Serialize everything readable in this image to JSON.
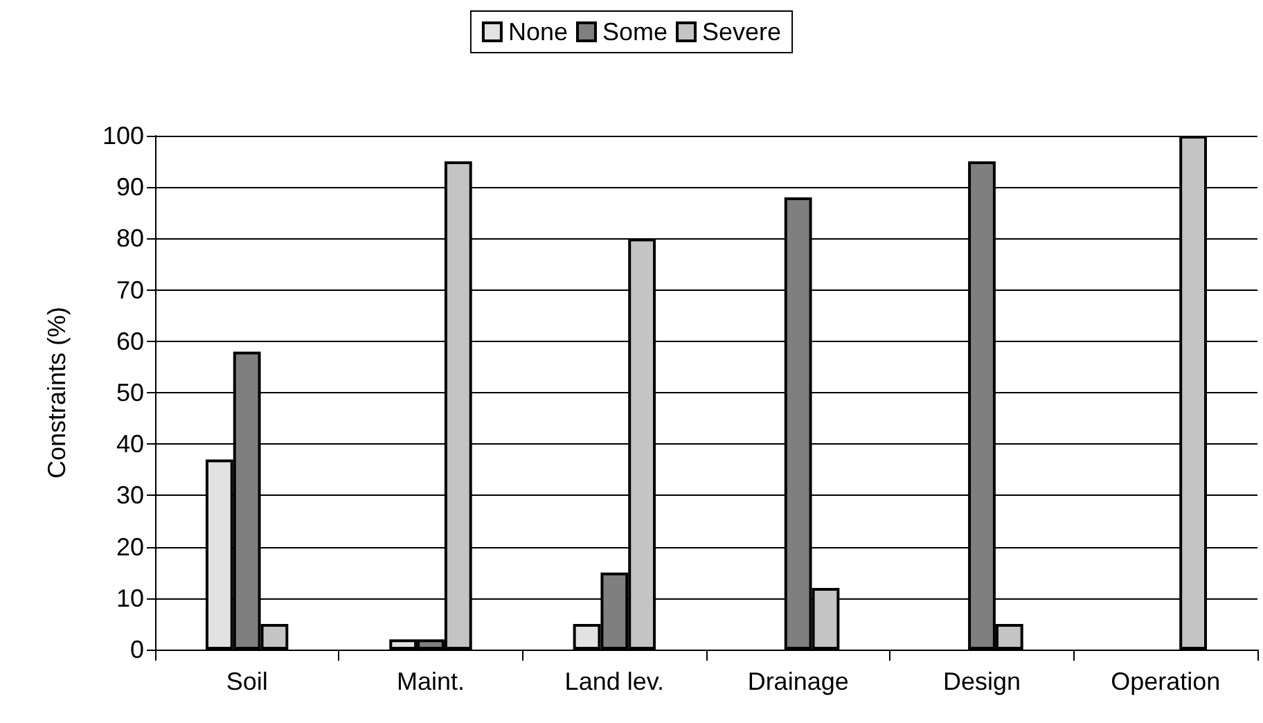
{
  "chart_data": {
    "type": "bar",
    "ylabel": "Constraints (%)",
    "categories": [
      "Soil",
      "Maint.",
      "Land lev.",
      "Drainage",
      "Design",
      "Operation"
    ],
    "series": [
      {
        "name": "None",
        "color": "#e2e2e2",
        "values": [
          37,
          2,
          5,
          null,
          null,
          null
        ]
      },
      {
        "name": "Some",
        "color": "#7f7f7f",
        "values": [
          58,
          2,
          15,
          88,
          95,
          null
        ]
      },
      {
        "name": "Severe",
        "color": "#c4c4c4",
        "values": [
          5,
          95,
          80,
          12,
          5,
          100
        ]
      }
    ],
    "ylim": [
      0,
      100
    ],
    "yticks": [
      0,
      10,
      20,
      30,
      40,
      50,
      60,
      70,
      80,
      90,
      100
    ],
    "grid": "y",
    "legend": "top"
  }
}
